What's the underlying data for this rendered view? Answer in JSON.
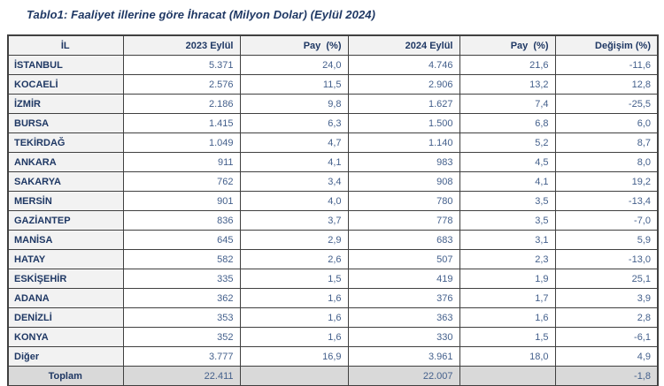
{
  "title": "Tablo1: Faaliyet illerine göre İhracat (Milyon Dolar) (Eylül 2024)",
  "table": {
    "headers": [
      "İL",
      "2023 Eylül",
      "Pay  (%)",
      "2024 Eylül",
      "Pay  (%)",
      "Değişim (%)"
    ],
    "rows": [
      {
        "il": "İSTANBUL",
        "v2023": "5.371",
        "pay2023": "24,0",
        "v2024": "4.746",
        "pay2024": "21,6",
        "degisim": "-11,6",
        "is_total": false
      },
      {
        "il": "KOCAELİ",
        "v2023": "2.576",
        "pay2023": "11,5",
        "v2024": "2.906",
        "pay2024": "13,2",
        "degisim": "12,8",
        "is_total": false
      },
      {
        "il": "İZMİR",
        "v2023": "2.186",
        "pay2023": "9,8",
        "v2024": "1.627",
        "pay2024": "7,4",
        "degisim": "-25,5",
        "is_total": false
      },
      {
        "il": "BURSA",
        "v2023": "1.415",
        "pay2023": "6,3",
        "v2024": "1.500",
        "pay2024": "6,8",
        "degisim": "6,0",
        "is_total": false
      },
      {
        "il": "TEKİRDAĞ",
        "v2023": "1.049",
        "pay2023": "4,7",
        "v2024": "1.140",
        "pay2024": "5,2",
        "degisim": "8,7",
        "is_total": false
      },
      {
        "il": "ANKARA",
        "v2023": "911",
        "pay2023": "4,1",
        "v2024": "983",
        "pay2024": "4,5",
        "degisim": "8,0",
        "is_total": false
      },
      {
        "il": "SAKARYA",
        "v2023": "762",
        "pay2023": "3,4",
        "v2024": "908",
        "pay2024": "4,1",
        "degisim": "19,2",
        "is_total": false
      },
      {
        "il": "MERSİN",
        "v2023": "901",
        "pay2023": "4,0",
        "v2024": "780",
        "pay2024": "3,5",
        "degisim": "-13,4",
        "is_total": false
      },
      {
        "il": "GAZİANTEP",
        "v2023": "836",
        "pay2023": "3,7",
        "v2024": "778",
        "pay2024": "3,5",
        "degisim": "-7,0",
        "is_total": false
      },
      {
        "il": "MANİSA",
        "v2023": "645",
        "pay2023": "2,9",
        "v2024": "683",
        "pay2024": "3,1",
        "degisim": "5,9",
        "is_total": false
      },
      {
        "il": "HATAY",
        "v2023": "582",
        "pay2023": "2,6",
        "v2024": "507",
        "pay2024": "2,3",
        "degisim": "-13,0",
        "is_total": false
      },
      {
        "il": "ESKİŞEHİR",
        "v2023": "335",
        "pay2023": "1,5",
        "v2024": "419",
        "pay2024": "1,9",
        "degisim": "25,1",
        "is_total": false
      },
      {
        "il": "ADANA",
        "v2023": "362",
        "pay2023": "1,6",
        "v2024": "376",
        "pay2024": "1,7",
        "degisim": "3,9",
        "is_total": false
      },
      {
        "il": "DENİZLİ",
        "v2023": "353",
        "pay2023": "1,6",
        "v2024": "363",
        "pay2024": "1,6",
        "degisim": "2,8",
        "is_total": false
      },
      {
        "il": "KONYA",
        "v2023": "352",
        "pay2023": "1,6",
        "v2024": "330",
        "pay2024": "1,5",
        "degisim": "-6,1",
        "is_total": false
      },
      {
        "il": "Diğer",
        "v2023": "3.777",
        "pay2023": "16,9",
        "v2024": "3.961",
        "pay2024": "18,0",
        "degisim": "4,9",
        "is_total": false
      },
      {
        "il": "Toplam",
        "v2023": "22.411",
        "pay2023": "",
        "v2024": "22.007",
        "pay2024": "",
        "degisim": "-1,8",
        "is_total": true
      }
    ]
  },
  "colors": {
    "title_text": "#1F3864",
    "header_text": "#1F3864",
    "province_text": "#1F3864",
    "number_text": "#44608C",
    "header_bg": "#F2F2F2",
    "province_col_bg": "#F2F2F2",
    "total_row_bg": "#D9D9D9",
    "border": "#404040"
  }
}
